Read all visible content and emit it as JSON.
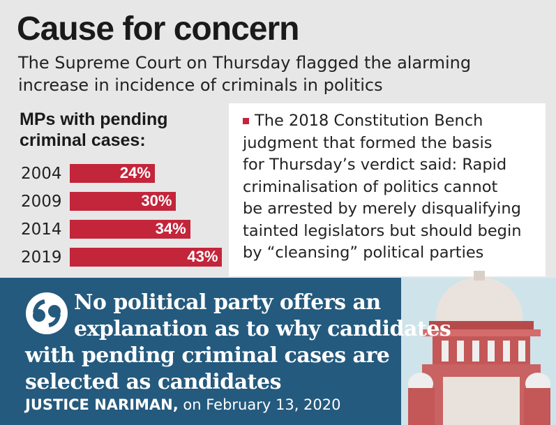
{
  "header": {
    "title": "Cause for concern",
    "subtitle": "The Supreme Court on Thursday flagged the alarming increase in incidence of criminals in politics"
  },
  "chart_data": {
    "type": "bar",
    "title": "MPs with pending criminal cases:",
    "categories": [
      "2004",
      "2009",
      "2014",
      "2019"
    ],
    "values": [
      24,
      30,
      34,
      43
    ],
    "value_labels": [
      "24%",
      "30%",
      "34%",
      "43%"
    ],
    "color": "#c3253a"
  },
  "note": {
    "lines": [
      "The 2018 Constitution Bench",
      "judgment that formed the basis",
      "for Thursday’s verdict said: Rapid",
      "criminalisation of politics cannot",
      "be arrested by merely disqualifying",
      "tainted legislators but should begin",
      "by “cleansing” political parties"
    ]
  },
  "quote": {
    "lines": [
      "No political party offers an",
      "explanation as to why candidates",
      "with pending criminal cases are",
      "selected as candidates"
    ],
    "author": "JUSTICE NARIMAN,",
    "date": "on February 13, 2020"
  }
}
